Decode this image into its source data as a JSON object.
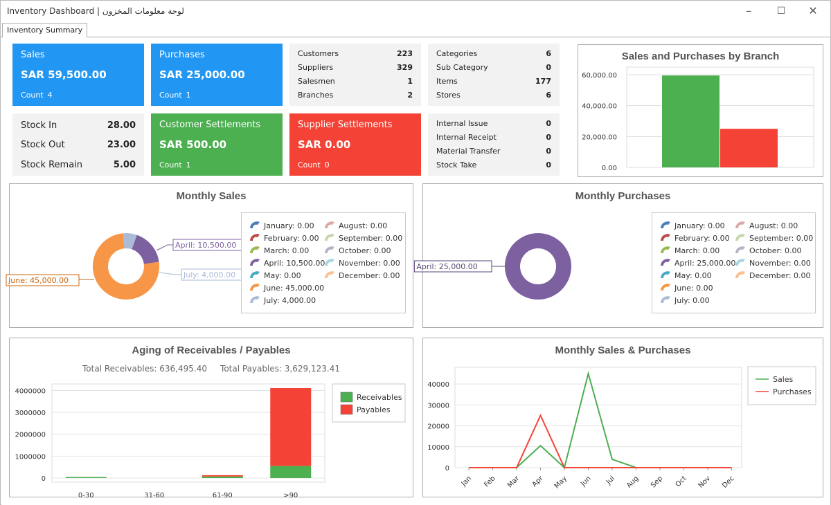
{
  "window": {
    "title": "Inventory Dashboard | لوحة معلومات المخزون"
  },
  "tab": {
    "label": "Inventory Summary"
  },
  "icons": {
    "minimize": "minimize-icon",
    "maximize": "maximize-icon",
    "close": "close-icon"
  },
  "cards": {
    "sales": {
      "label": "Sales",
      "amount": "SAR 59,500.00",
      "count_label": "Count",
      "count": "4",
      "color": "#2196f3"
    },
    "purchases": {
      "label": "Purchases",
      "amount": "SAR 25,000.00",
      "count_label": "Count",
      "count": "1",
      "color": "#2196f3"
    },
    "customer_settlements": {
      "label": "Customer Settlements",
      "amount": "SAR 500.00",
      "count_label": "Count",
      "count": "1",
      "color": "#4caf50"
    },
    "supplier_settlements": {
      "label": "Supplier Settlements",
      "amount": "SAR 0.00",
      "count_label": "Count",
      "count": "0",
      "color": "#f44336"
    }
  },
  "stats_parties": [
    {
      "label": "Customers",
      "value": "223"
    },
    {
      "label": "Suppliers",
      "value": "329"
    },
    {
      "label": "Salesmen",
      "value": "1"
    },
    {
      "label": "Branches",
      "value": "2"
    }
  ],
  "stats_catalog": [
    {
      "label": "Categories",
      "value": "6"
    },
    {
      "label": "Sub Category",
      "value": "0"
    },
    {
      "label": "Items",
      "value": "177"
    },
    {
      "label": "Stores",
      "value": "6"
    }
  ],
  "stats_stock": [
    {
      "label": "Stock In",
      "value": "28.00"
    },
    {
      "label": "Stock Out",
      "value": "23.00"
    },
    {
      "label": "Stock Remain",
      "value": "5.00"
    }
  ],
  "stats_transfers": [
    {
      "label": "Internal Issue",
      "value": "0"
    },
    {
      "label": "Internal Receipt",
      "value": "0"
    },
    {
      "label": "Material Transfer",
      "value": "0"
    },
    {
      "label": "Stock Take",
      "value": "0"
    }
  ],
  "branch_chart": {
    "title": "Sales and Purchases by Branch",
    "chart_data": {
      "type": "bar",
      "categories": [
        ""
      ],
      "series": [
        {
          "values": [
            59500
          ],
          "color": "#4caf50"
        },
        {
          "values": [
            25000
          ],
          "color": "#f44336"
        }
      ],
      "yticks": [
        "0.00",
        "20,000.00",
        "40,000.00",
        "60,000.00"
      ],
      "ylim": [
        0,
        65000
      ]
    }
  },
  "monthly_sales": {
    "title": "Monthly Sales",
    "chart_data": {
      "type": "pie",
      "labels": [
        "January",
        "February",
        "March",
        "April",
        "May",
        "June",
        "July",
        "August",
        "September",
        "October",
        "November",
        "December"
      ],
      "values": [
        0,
        0,
        0,
        10500,
        0,
        45000,
        4000,
        0,
        0,
        0,
        0,
        0
      ],
      "legend_text": [
        "January: 0.00",
        "February: 0.00",
        "March: 0.00",
        "April: 10,500.00",
        "May: 0.00",
        "June: 45,000.00",
        "July: 4,000.00",
        "August: 0.00",
        "September: 0.00",
        "October: 0.00",
        "November: 0.00",
        "December: 0.00"
      ],
      "callouts": [
        "April: 10,500.00",
        "July: 4,000.00",
        "June: 45,000.00"
      ]
    }
  },
  "monthly_purchases": {
    "title": "Monthly Purchases",
    "chart_data": {
      "type": "pie",
      "labels": [
        "January",
        "February",
        "March",
        "April",
        "May",
        "June",
        "July",
        "August",
        "September",
        "October",
        "November",
        "December"
      ],
      "values": [
        0,
        0,
        0,
        25000,
        0,
        0,
        0,
        0,
        0,
        0,
        0,
        0
      ],
      "legend_text": [
        "January: 0.00",
        "February: 0.00",
        "March: 0.00",
        "April: 25,000.00",
        "May: 0.00",
        "June: 0.00",
        "July: 0.00",
        "August: 0.00",
        "September: 0.00",
        "October: 0.00",
        "November: 0.00",
        "December: 0.00"
      ],
      "callouts": [
        "April: 25,000.00"
      ]
    }
  },
  "month_colors": [
    "#4a7ebb",
    "#be4b48",
    "#98b954",
    "#7d60a0",
    "#46aac5",
    "#f79646",
    "#aabad7",
    "#d9aaa9",
    "#c6d6ac",
    "#bab0c9",
    "#a9d5e2",
    "#fac090"
  ],
  "aging": {
    "title": "Aging of Receivables / Payables",
    "subtitle": "Total Receivables: 636,495.40     Total Payables: 3,629,123.41",
    "chart_data": {
      "type": "bar",
      "stacked": true,
      "categories": [
        "0-30",
        "31-60",
        "61-90",
        ">90"
      ],
      "series": [
        {
          "name": "Receivables",
          "values": [
            20000,
            0,
            70000,
            550000
          ],
          "color": "#4caf50"
        },
        {
          "name": "Payables",
          "values": [
            0,
            0,
            60000,
            3560000
          ],
          "color": "#f44336"
        }
      ],
      "yticks": [
        "0",
        "1000000",
        "2000000",
        "3000000",
        "4000000"
      ],
      "ylim": [
        0,
        4300000
      ]
    }
  },
  "sales_purchases_line": {
    "title": "Monthly Sales & Purchases",
    "chart_data": {
      "type": "line",
      "x": [
        "Jan",
        "Feb",
        "Mar",
        "Apr",
        "May",
        "Jun",
        "Jul",
        "Aug",
        "Sep",
        "Oct",
        "Nov",
        "Dec"
      ],
      "series": [
        {
          "name": "Sales",
          "values": [
            0,
            0,
            0,
            10500,
            0,
            45000,
            4000,
            0,
            0,
            0,
            0,
            0
          ],
          "color": "#4caf50"
        },
        {
          "name": "Purchases",
          "values": [
            0,
            0,
            0,
            25000,
            0,
            0,
            0,
            0,
            0,
            0,
            0,
            0
          ],
          "color": "#f44336"
        }
      ],
      "yticks": [
        "0",
        "10000",
        "20000",
        "30000",
        "40000"
      ],
      "ylim": [
        0,
        48000
      ]
    }
  }
}
